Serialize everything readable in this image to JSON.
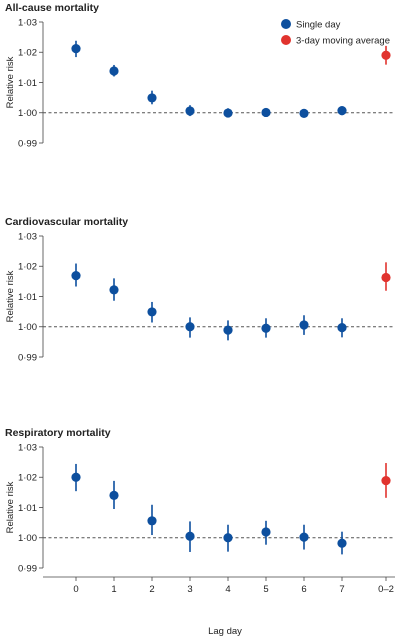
{
  "colors": {
    "single_day": "#0d4f9e",
    "moving_average": "#e1332e",
    "axis": "#444444",
    "reference_line": "#555555"
  },
  "legend": {
    "items": [
      {
        "label": "Single day",
        "color": "#0d4f9e"
      },
      {
        "label": "3-day moving average",
        "color": "#e1332e"
      }
    ],
    "placement": "top-right"
  },
  "chart_data": [
    {
      "type": "scatter",
      "title": "All-cause mortality",
      "ylabel": "Relative risk",
      "ylim": [
        0.99,
        1.03
      ],
      "yticks": [
        "0·99",
        "1·00",
        "1·01",
        "1·02",
        "1·03"
      ],
      "categories": [
        "0",
        "1",
        "2",
        "3",
        "4",
        "5",
        "6",
        "7",
        "0–2"
      ],
      "reference_line": 1.0,
      "series": [
        {
          "name": "Single day",
          "x": [
            "0",
            "1",
            "2",
            "3",
            "4",
            "5",
            "6",
            "7"
          ],
          "values": [
            1.0212,
            1.0138,
            1.0049,
            1.0006,
            0.9999,
            1.0001,
            0.9998,
            1.0007
          ],
          "lower": [
            1.0184,
            1.012,
            1.0028,
            0.9989,
            0.9986,
            0.999,
            0.9986,
            0.9992
          ],
          "upper": [
            1.0238,
            1.0158,
            1.0073,
            1.0025,
            1.0015,
            1.0013,
            1.0012,
            1.0021
          ]
        },
        {
          "name": "3-day moving average",
          "x": [
            "0–2"
          ],
          "values": [
            1.019
          ],
          "lower": [
            1.0159
          ],
          "upper": [
            1.0221
          ]
        }
      ]
    },
    {
      "type": "scatter",
      "title": "Cardiovascular mortality",
      "ylabel": "Relative risk",
      "ylim": [
        0.99,
        1.03
      ],
      "yticks": [
        "0·99",
        "1·00",
        "1·01",
        "1·02",
        "1·03"
      ],
      "categories": [
        "0",
        "1",
        "2",
        "3",
        "4",
        "5",
        "6",
        "7",
        "0–2"
      ],
      "reference_line": 1.0,
      "series": [
        {
          "name": "Single day",
          "x": [
            "0",
            "1",
            "2",
            "3",
            "4",
            "5",
            "6",
            "7"
          ],
          "values": [
            1.0169,
            1.0122,
            1.0049,
            1.0,
            0.9989,
            0.9995,
            1.0006,
            0.9997
          ],
          "lower": [
            1.0133,
            1.0086,
            1.0014,
            0.9964,
            0.9955,
            0.9964,
            0.9973,
            0.9965
          ],
          "upper": [
            1.0209,
            1.016,
            1.0082,
            1.0031,
            1.0021,
            1.0028,
            1.0038,
            1.0028
          ]
        },
        {
          "name": "3-day moving average",
          "x": [
            "0–2"
          ],
          "values": [
            1.0163
          ],
          "lower": [
            1.0119
          ],
          "upper": [
            1.0213
          ]
        }
      ]
    },
    {
      "type": "scatter",
      "title": "Respiratory mortality",
      "ylabel": "Relative risk",
      "ylim": [
        0.99,
        1.03
      ],
      "yticks": [
        "0·99",
        "1·00",
        "1·01",
        "1·02",
        "1·03"
      ],
      "categories": [
        "0",
        "1",
        "2",
        "3",
        "4",
        "5",
        "6",
        "7",
        "0–2"
      ],
      "xlabel": "Lag day",
      "reference_line": 1.0,
      "series": [
        {
          "name": "Single day",
          "x": [
            "0",
            "1",
            "2",
            "3",
            "4",
            "5",
            "6",
            "7"
          ],
          "values": [
            1.02,
            1.014,
            1.0056,
            1.0005,
            1.0,
            1.0019,
            1.0002,
            0.9982
          ],
          "lower": [
            1.0154,
            1.0095,
            1.0009,
            0.9953,
            0.9954,
            0.9977,
            0.9961,
            0.9945
          ],
          "upper": [
            1.0244,
            1.0188,
            1.0109,
            1.0054,
            1.0043,
            1.0056,
            1.0043,
            1.002
          ]
        },
        {
          "name": "3-day moving average",
          "x": [
            "0–2"
          ],
          "values": [
            1.0189
          ],
          "lower": [
            1.0132
          ],
          "upper": [
            1.0247
          ]
        }
      ]
    }
  ]
}
